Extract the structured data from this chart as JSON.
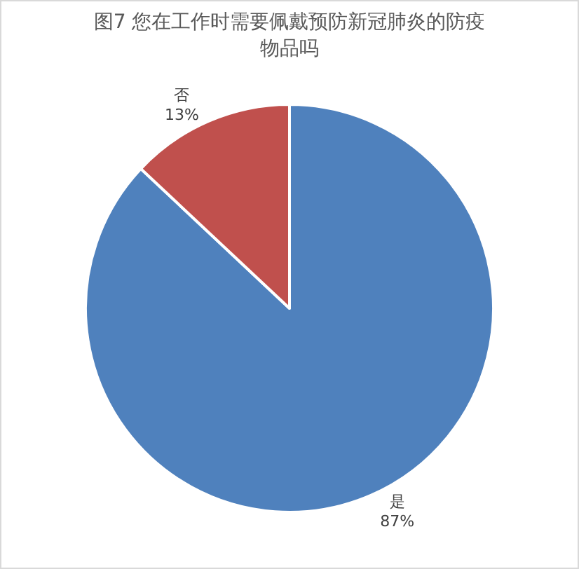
{
  "chart_data": {
    "type": "pie",
    "title": "图7 您在工作时需要佩戴预防新冠肺炎的防疫物品吗",
    "categories": [
      "是",
      "否"
    ],
    "values": [
      87,
      13
    ],
    "colors": [
      "#4f81bd",
      "#c0504d"
    ],
    "value_labels": [
      "87%",
      "13%"
    ],
    "legend": false
  }
}
